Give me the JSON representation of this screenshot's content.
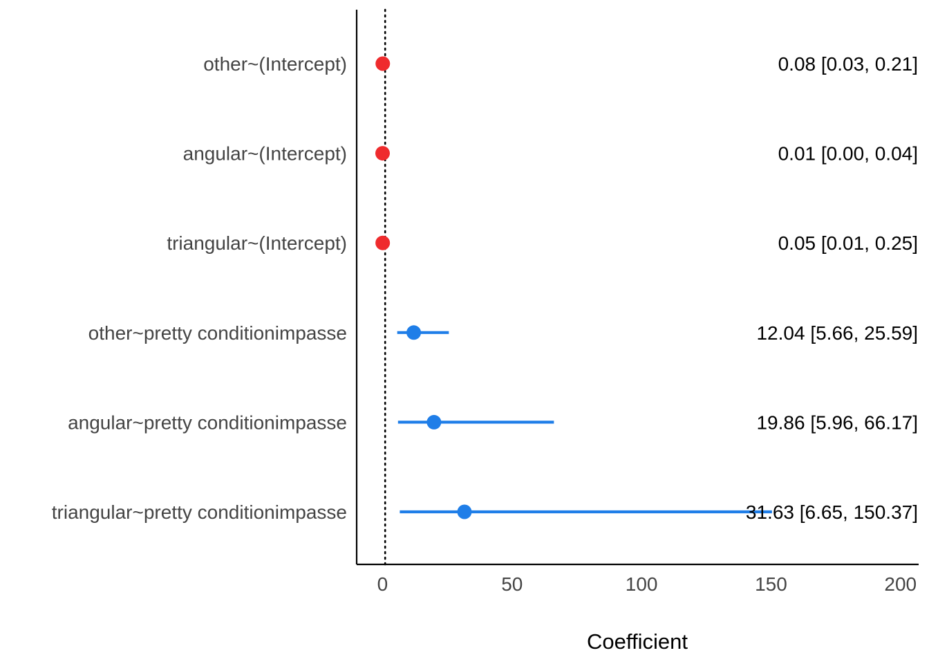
{
  "chart_data": {
    "type": "forest",
    "xlabel": "Coefficient",
    "xlim": [
      -10,
      207
    ],
    "xticks": [
      0,
      50,
      100,
      150,
      200
    ],
    "reference_line": 1,
    "grid": false,
    "legend": "none",
    "colors": {
      "below_one": "#ef2b2d",
      "above_one": "#1f7ee8",
      "reference": "#000000",
      "axis": "#000000"
    },
    "rows": [
      {
        "term": "other~(Intercept)",
        "estimate": 0.08,
        "low": 0.03,
        "high": 0.21,
        "label": "0.08 [0.03, 0.21]",
        "group": "below_one"
      },
      {
        "term": "angular~(Intercept)",
        "estimate": 0.01,
        "low": 0.0,
        "high": 0.04,
        "label": "0.01 [0.00, 0.04]",
        "group": "below_one"
      },
      {
        "term": "triangular~(Intercept)",
        "estimate": 0.05,
        "low": 0.01,
        "high": 0.25,
        "label": "0.05 [0.01, 0.25]",
        "group": "below_one"
      },
      {
        "term": "other~pretty conditionimpasse",
        "estimate": 12.04,
        "low": 5.66,
        "high": 25.59,
        "label": "12.04 [5.66, 25.59]",
        "group": "above_one"
      },
      {
        "term": "angular~pretty conditionimpasse",
        "estimate": 19.86,
        "low": 5.96,
        "high": 66.17,
        "label": "19.86 [5.96, 66.17]",
        "group": "above_one"
      },
      {
        "term": "triangular~pretty conditionimpasse",
        "estimate": 31.63,
        "low": 6.65,
        "high": 150.37,
        "label": "31.63 [6.65, 150.37]",
        "group": "above_one"
      }
    ]
  }
}
